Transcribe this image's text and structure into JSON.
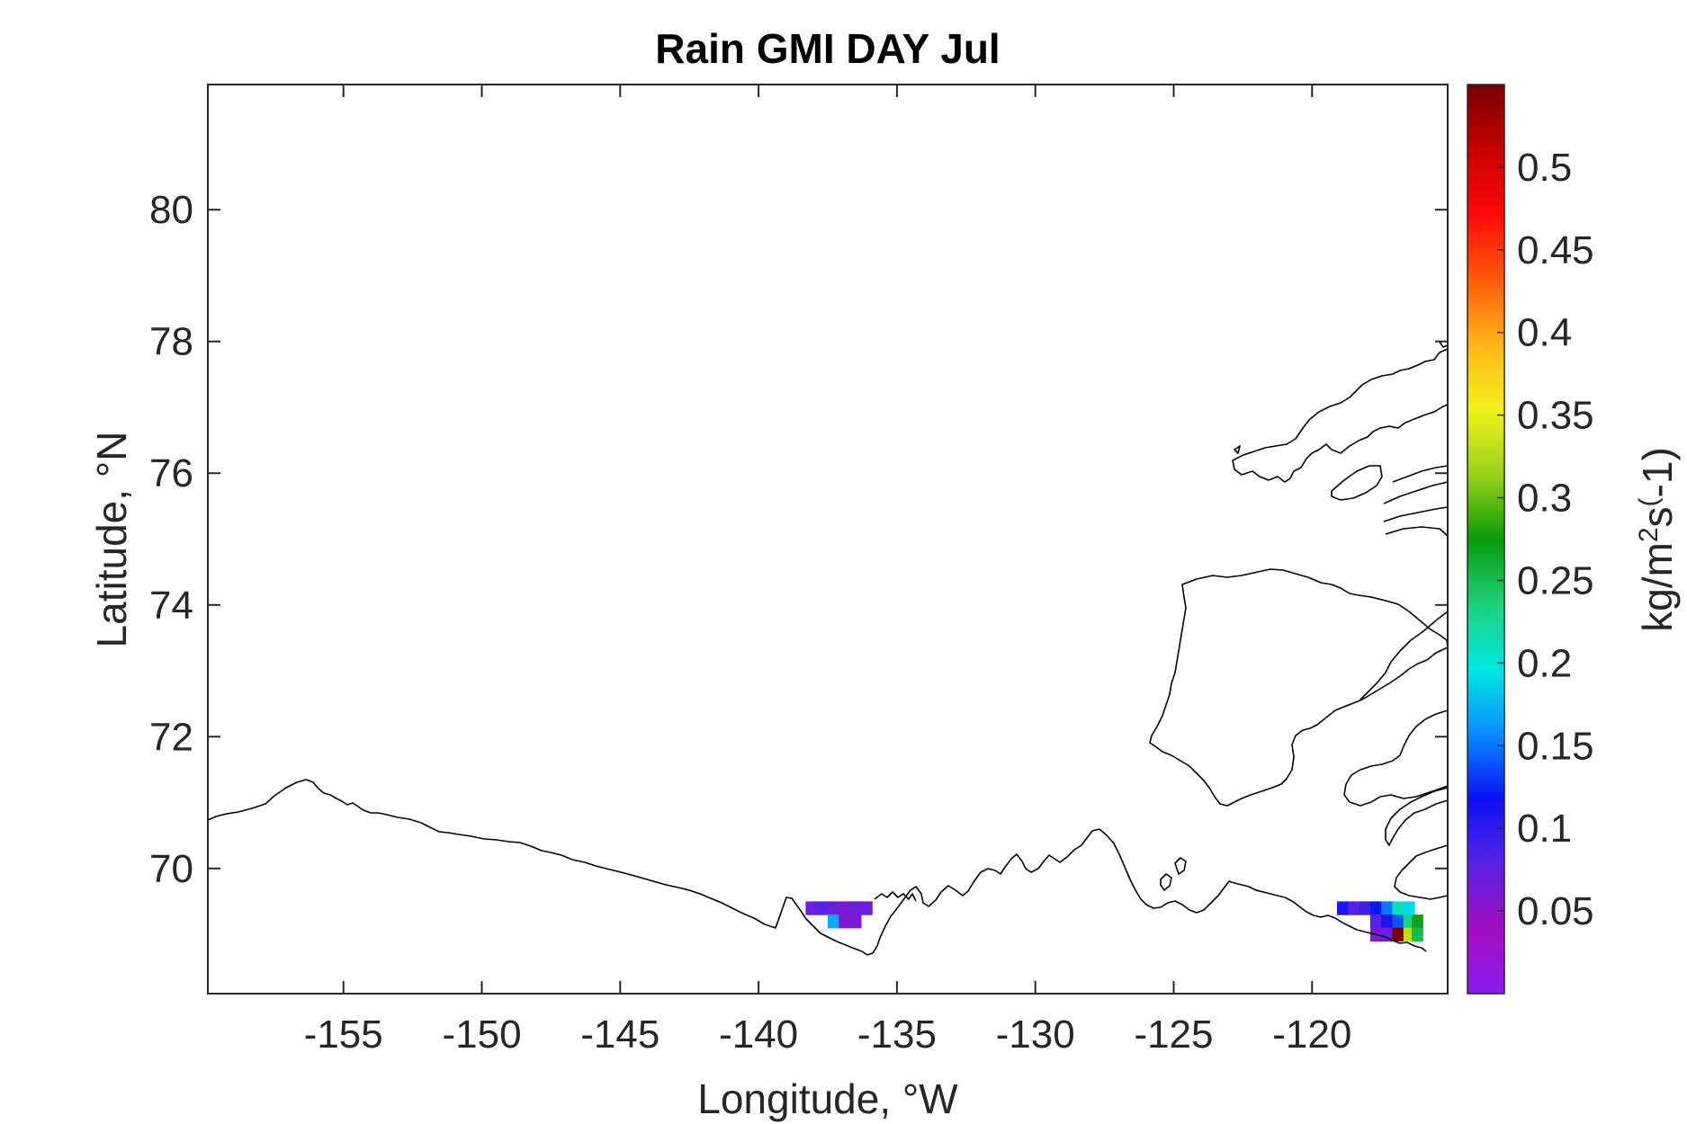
{
  "chart_data": {
    "type": "heatmap",
    "title": "Rain GMI DAY Jul",
    "xlabel": "Longitude, °W",
    "ylabel": "Latitude, °N",
    "xlim": [
      -159.9,
      -115.1
    ],
    "ylim": [
      68.1,
      81.9
    ],
    "xticks": [
      -155,
      -150,
      -145,
      -140,
      -135,
      -130,
      -125,
      -120
    ],
    "yticks": [
      70,
      72,
      74,
      76,
      78,
      80
    ],
    "colorbar": {
      "label": "kg/m^2s^(-1)",
      "label_parts": {
        "base": "kg/m",
        "sup1": "2",
        "mid": "s",
        "sup2": "(",
        "tail": "-1)"
      },
      "range": [
        0,
        0.55
      ],
      "ticks": [
        0.05,
        0.1,
        0.15,
        0.2,
        0.25,
        0.3,
        0.35,
        0.4,
        0.45,
        0.5
      ],
      "colormap": "jet-like, violet to dark red",
      "stops": [
        "#8a1cf2",
        "#a30ec0",
        "#5a22e6",
        "#0a12f5",
        "#0a8cff",
        "#00e8e0",
        "#1fd07a",
        "#0a9a0a",
        "#9ad21a",
        "#f2f21a",
        "#ffb41a",
        "#ff5a0a",
        "#ff0a0a",
        "#c80000",
        "#780000"
      ]
    },
    "cells": [
      {
        "lon": -138.1,
        "lat": 69.4,
        "value": 0.07
      },
      {
        "lon": -137.7,
        "lat": 69.4,
        "value": 0.08
      },
      {
        "lon": -137.3,
        "lat": 69.4,
        "value": 0.07
      },
      {
        "lon": -136.9,
        "lat": 69.4,
        "value": 0.06
      },
      {
        "lon": -136.5,
        "lat": 69.4,
        "value": 0.07
      },
      {
        "lon": -136.1,
        "lat": 69.4,
        "value": 0.07
      },
      {
        "lon": -137.3,
        "lat": 69.2,
        "value": 0.17
      },
      {
        "lon": -136.9,
        "lat": 69.2,
        "value": 0.06
      },
      {
        "lon": -136.5,
        "lat": 69.2,
        "value": 0.06
      },
      {
        "lon": -118.9,
        "lat": 69.4,
        "value": 0.11
      },
      {
        "lon": -118.5,
        "lat": 69.4,
        "value": 0.08
      },
      {
        "lon": -118.1,
        "lat": 69.4,
        "value": 0.09
      },
      {
        "lon": -117.7,
        "lat": 69.4,
        "value": 0.12
      },
      {
        "lon": -117.3,
        "lat": 69.4,
        "value": 0.15
      },
      {
        "lon": -116.9,
        "lat": 69.4,
        "value": 0.21
      },
      {
        "lon": -116.5,
        "lat": 69.4,
        "value": 0.19
      },
      {
        "lon": -117.7,
        "lat": 69.2,
        "value": 0.08
      },
      {
        "lon": -117.3,
        "lat": 69.2,
        "value": 0.11
      },
      {
        "lon": -116.9,
        "lat": 69.2,
        "value": 0.14
      },
      {
        "lon": -116.5,
        "lat": 69.2,
        "value": 0.23
      },
      {
        "lon": -116.2,
        "lat": 69.2,
        "value": 0.27
      },
      {
        "lon": -117.7,
        "lat": 69.0,
        "value": 0.06
      },
      {
        "lon": -117.3,
        "lat": 69.0,
        "value": 0.07
      },
      {
        "lon": -116.9,
        "lat": 69.0,
        "value": 0.55
      },
      {
        "lon": -116.5,
        "lat": 69.0,
        "value": 0.33
      },
      {
        "lon": -116.2,
        "lat": 69.0,
        "value": 0.25
      }
    ]
  }
}
